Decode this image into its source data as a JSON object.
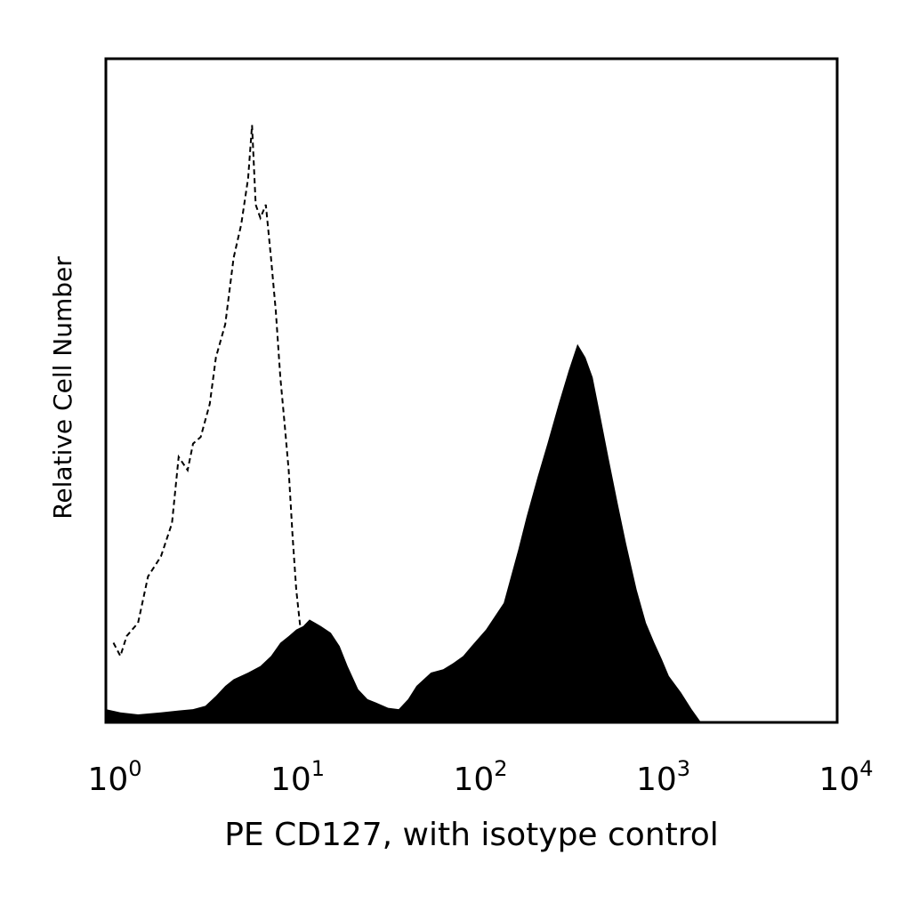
{
  "chart_data": {
    "type": "area",
    "title": "",
    "xlabel": "PE CD127, with isotype control",
    "ylabel": "Relative Cell Number",
    "xscale": "log",
    "xlim": [
      1,
      10000
    ],
    "ylim": [
      0,
      1.0
    ],
    "grid": false,
    "legend": "none",
    "x_ticks": [
      {
        "base": "10",
        "exp": "0",
        "value": 1
      },
      {
        "base": "10",
        "exp": "1",
        "value": 10
      },
      {
        "base": "10",
        "exp": "2",
        "value": 100
      },
      {
        "base": "10",
        "exp": "3",
        "value": 1000
      },
      {
        "base": "10",
        "exp": "4",
        "value": 10000
      }
    ],
    "series": [
      {
        "style": "filled",
        "color": "#000000",
        "points": [
          [
            1.0,
            0.02
          ],
          [
            1.2,
            0.015
          ],
          [
            1.5,
            0.012
          ],
          [
            2.0,
            0.015
          ],
          [
            2.5,
            0.018
          ],
          [
            3.0,
            0.02
          ],
          [
            3.5,
            0.025
          ],
          [
            4.0,
            0.04
          ],
          [
            4.5,
            0.055
          ],
          [
            5.0,
            0.065
          ],
          [
            6.0,
            0.075
          ],
          [
            7.0,
            0.085
          ],
          [
            8.0,
            0.1
          ],
          [
            9.0,
            0.12
          ],
          [
            10.0,
            0.13
          ],
          [
            11.0,
            0.14
          ],
          [
            12.0,
            0.145
          ],
          [
            13.0,
            0.155
          ],
          [
            14.0,
            0.15
          ],
          [
            15.0,
            0.145
          ],
          [
            17.0,
            0.135
          ],
          [
            19.0,
            0.115
          ],
          [
            21.0,
            0.085
          ],
          [
            24.0,
            0.05
          ],
          [
            27.0,
            0.035
          ],
          [
            30.0,
            0.03
          ],
          [
            35.0,
            0.022
          ],
          [
            40.0,
            0.02
          ],
          [
            45.0,
            0.035
          ],
          [
            50.0,
            0.055
          ],
          [
            60.0,
            0.075
          ],
          [
            70.0,
            0.08
          ],
          [
            80.0,
            0.09
          ],
          [
            90.0,
            0.1
          ],
          [
            100.0,
            0.115
          ],
          [
            120.0,
            0.14
          ],
          [
            150.0,
            0.18
          ],
          [
            180.0,
            0.26
          ],
          [
            200.0,
            0.31
          ],
          [
            230.0,
            0.37
          ],
          [
            260.0,
            0.42
          ],
          [
            300.0,
            0.48
          ],
          [
            340.0,
            0.53
          ],
          [
            380.0,
            0.57
          ],
          [
            420.0,
            0.55
          ],
          [
            460.0,
            0.52
          ],
          [
            500.0,
            0.47
          ],
          [
            560.0,
            0.4
          ],
          [
            630.0,
            0.33
          ],
          [
            700.0,
            0.27
          ],
          [
            800.0,
            0.2
          ],
          [
            900.0,
            0.15
          ],
          [
            1000.0,
            0.12
          ],
          [
            1100.0,
            0.095
          ],
          [
            1200.0,
            0.07
          ],
          [
            1400.0,
            0.045
          ],
          [
            1600.0,
            0.02
          ],
          [
            1800.0,
            0.0
          ]
        ]
      },
      {
        "style": "dashed",
        "color": "#000000",
        "points": [
          [
            1.1,
            0.12
          ],
          [
            1.2,
            0.1
          ],
          [
            1.3,
            0.13
          ],
          [
            1.5,
            0.15
          ],
          [
            1.7,
            0.22
          ],
          [
            2.0,
            0.25
          ],
          [
            2.3,
            0.3
          ],
          [
            2.5,
            0.4
          ],
          [
            2.8,
            0.38
          ],
          [
            3.0,
            0.42
          ],
          [
            3.3,
            0.43
          ],
          [
            3.7,
            0.48
          ],
          [
            4.0,
            0.55
          ],
          [
            4.5,
            0.6
          ],
          [
            5.0,
            0.7
          ],
          [
            5.5,
            0.75
          ],
          [
            6.0,
            0.82
          ],
          [
            6.3,
            0.9
          ],
          [
            6.6,
            0.78
          ],
          [
            7.0,
            0.76
          ],
          [
            7.5,
            0.78
          ],
          [
            8.0,
            0.7
          ],
          [
            8.5,
            0.62
          ],
          [
            9.0,
            0.52
          ],
          [
            9.5,
            0.45
          ],
          [
            10.0,
            0.38
          ],
          [
            10.5,
            0.28
          ],
          [
            11.0,
            0.2
          ],
          [
            11.5,
            0.15
          ],
          [
            12.0,
            0.11
          ]
        ]
      }
    ]
  }
}
